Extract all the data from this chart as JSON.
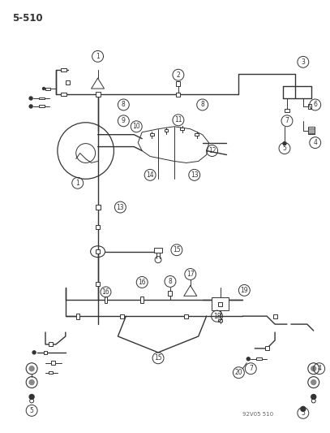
{
  "background_color": "#ffffff",
  "line_color": "#333333",
  "title": "5-510",
  "watermark": "92V05 510",
  "figure_width": 4.07,
  "figure_height": 5.33,
  "dpi": 100
}
